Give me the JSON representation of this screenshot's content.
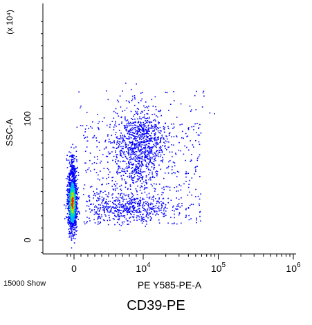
{
  "chart_data": {
    "type": "scatter",
    "style": "density-colored dot plot (blue → cyan → green → yellow → red by density)",
    "xlabel": "PE Y585-PE-A",
    "ylabel": "SSC-A",
    "y_multiplier_label": "(x 10⁴)",
    "x_scale": "biexponential",
    "x_tick_labels": [
      {
        "base": "0",
        "exp": ""
      },
      {
        "base": "10",
        "exp": "4"
      },
      {
        "base": "10",
        "exp": "5"
      },
      {
        "base": "10",
        "exp": "6"
      }
    ],
    "x_tick_values": [
      0,
      10000,
      100000,
      1000000
    ],
    "y_tick_labels": [
      "0",
      "100"
    ],
    "y_tick_values": [
      0,
      100
    ],
    "ylim": [
      -10,
      180
    ],
    "grid": false,
    "event_count": 15000,
    "clusters": [
      {
        "name": "negative population",
        "x_center": 0,
        "y_center": 25,
        "relative_size": "dense"
      },
      {
        "name": "positive population (bright)",
        "x_center": 8000,
        "y_center": 80,
        "relative_size": "medium"
      },
      {
        "name": "positive population (low SSC)",
        "x_center": 6000,
        "y_center": 28,
        "relative_size": "medium"
      }
    ],
    "density_colors": [
      "#0000ff",
      "#00b0ff",
      "#00e0a0",
      "#b0e000",
      "#ff2000"
    ]
  },
  "footer": {
    "events_label": "15000 Show",
    "caption": "CD39-PE"
  }
}
